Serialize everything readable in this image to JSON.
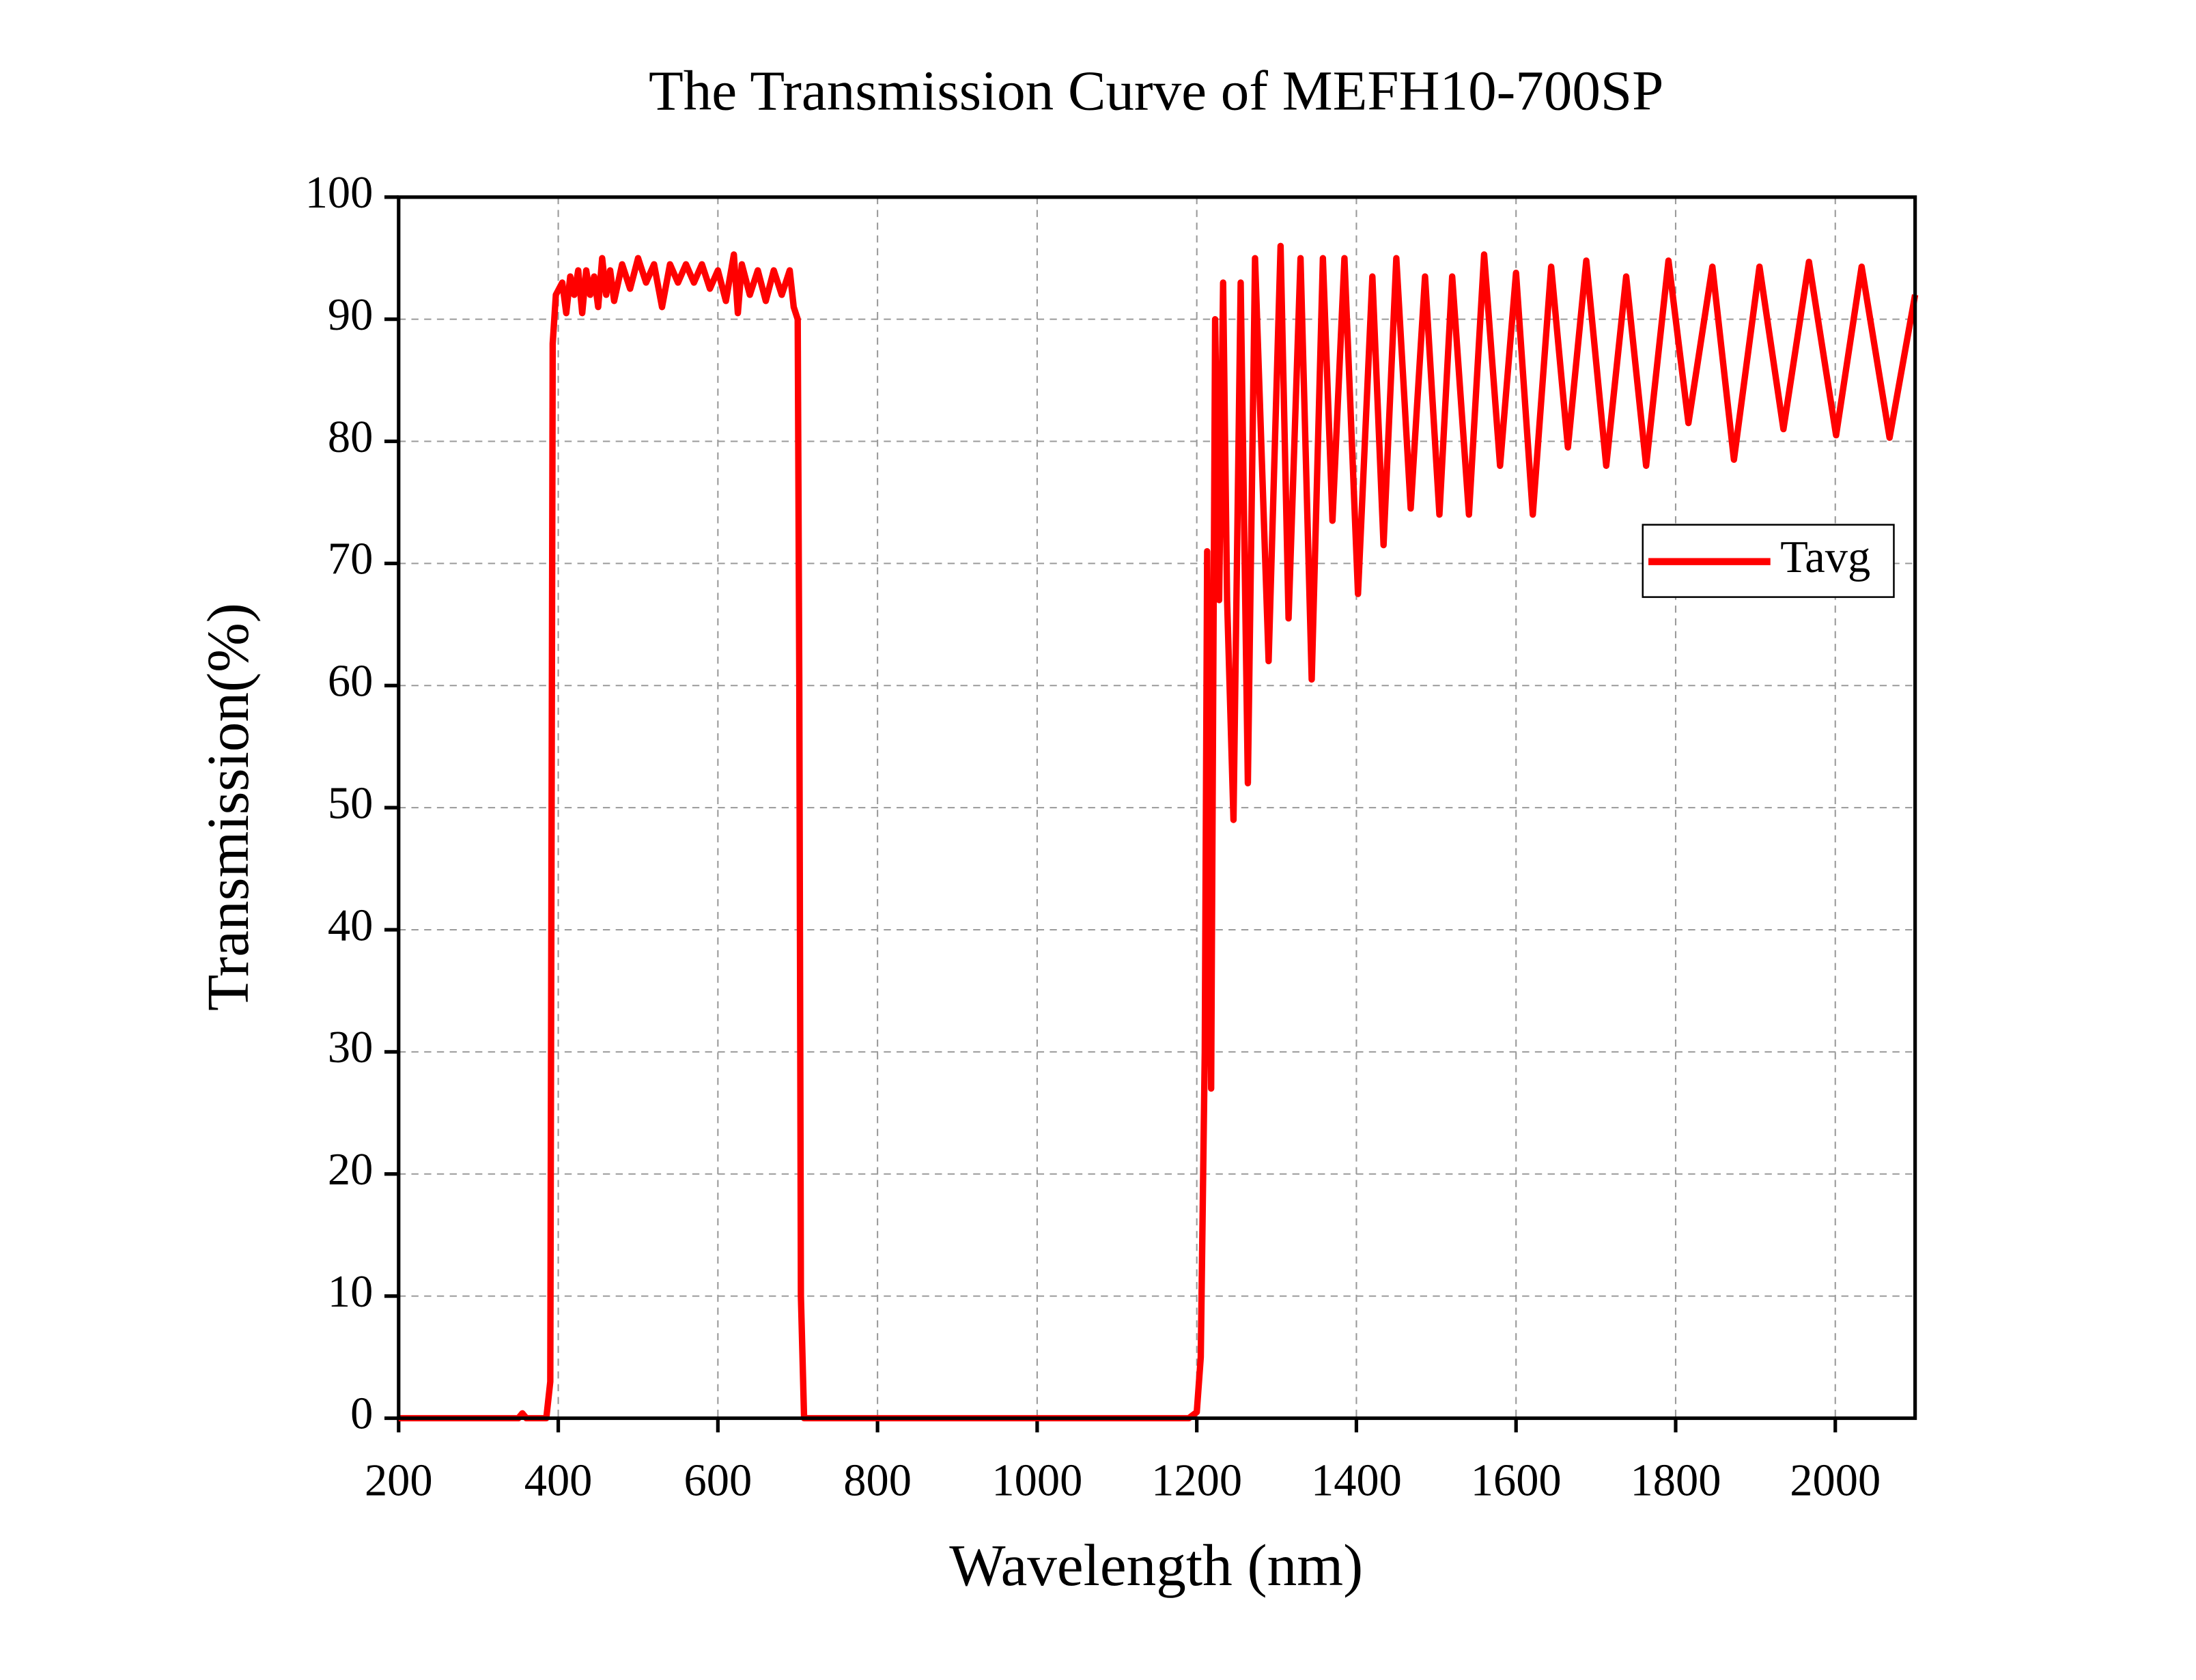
{
  "chart_data": {
    "type": "line",
    "title": "The Transmission Curve of MEFH10-700SP",
    "x_label": "Wavelength (nm)",
    "y_label": "Transmission(%)",
    "xlim": [
      200,
      2100
    ],
    "xticks": [
      200,
      400,
      600,
      800,
      1000,
      1200,
      1400,
      1600,
      1800,
      2000
    ],
    "ylim": [
      0,
      100
    ],
    "yticks": [
      0,
      10,
      20,
      30,
      40,
      50,
      60,
      70,
      80,
      90,
      100
    ],
    "grid": true,
    "legend": "upper right",
    "series": [
      {
        "name": "Tavg",
        "color": "#ff0000",
        "x": [
          200,
          350,
          355,
          360,
          385,
          390,
          393,
          397,
          405,
          410,
          415,
          420,
          425,
          430,
          435,
          440,
          445,
          450,
          455,
          460,
          465,
          470,
          480,
          490,
          500,
          510,
          520,
          530,
          540,
          550,
          560,
          570,
          580,
          590,
          600,
          610,
          620,
          625,
          630,
          640,
          650,
          660,
          670,
          680,
          690,
          695,
          700,
          702,
          704,
          708,
          1190,
          1200,
          1205,
          1210,
          1213,
          1218,
          1223,
          1228,
          1233,
          1238,
          1246,
          1255,
          1264,
          1273,
          1290,
          1305,
          1315,
          1330,
          1344,
          1358,
          1370,
          1385,
          1402,
          1420,
          1434,
          1450,
          1468,
          1486,
          1504,
          1520,
          1541,
          1560,
          1580,
          1600,
          1621,
          1644,
          1665,
          1688,
          1713,
          1738,
          1763,
          1791,
          1816,
          1846,
          1873,
          1905,
          1935,
          1967,
          2001,
          2033,
          2068,
          2100
        ],
        "values": [
          0,
          0,
          0.4,
          0,
          0,
          3,
          88,
          92,
          93,
          90.5,
          93.5,
          92,
          94,
          90.5,
          94,
          92,
          93.5,
          91,
          95,
          92,
          94,
          91.5,
          94.5,
          92.5,
          95,
          93,
          94.5,
          91,
          94.5,
          93,
          94.5,
          93,
          94.5,
          92.5,
          94,
          91.5,
          95.3,
          90.5,
          94.5,
          92,
          94,
          91.5,
          94,
          92,
          94,
          91,
          90,
          60,
          10,
          0,
          0,
          0.5,
          5,
          30,
          71,
          27,
          90,
          67,
          93,
          67,
          49,
          93,
          52,
          95,
          62,
          96,
          65.5,
          95,
          60.5,
          95,
          73.5,
          95,
          67.5,
          93.5,
          71.5,
          95,
          74.5,
          93.5,
          74,
          93.5,
          74,
          95.3,
          78,
          93.8,
          74,
          94.3,
          79.5,
          94.8,
          78,
          93.5,
          78,
          94.8,
          81.5,
          94.3,
          78.5,
          94.3,
          81,
          94.7,
          80.5,
          94.3,
          80.3,
          92
        ]
      }
    ]
  }
}
